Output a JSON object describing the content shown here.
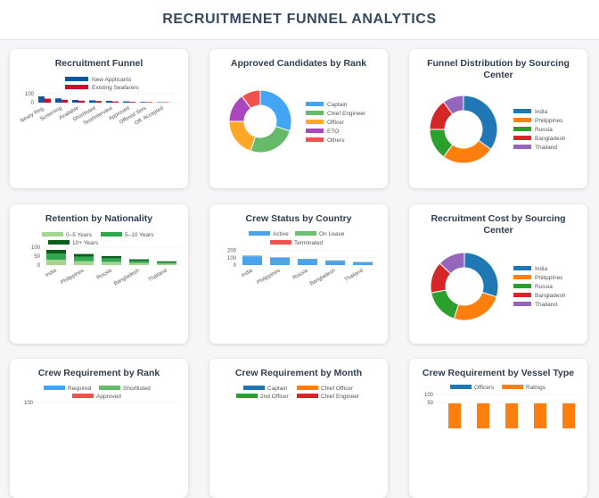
{
  "page": {
    "title": "RECRUITMENET FUNNEL ANALYTICS"
  },
  "chart_data": [
    {
      "id": "funnel",
      "type": "bar",
      "title": "Recruitment Funnel",
      "categories": [
        "Newly Reg.",
        "Screening",
        "Available",
        "Shortlisted",
        "Test/Interview",
        "Approved",
        "Offered Sers",
        "Off. Accepted"
      ],
      "series": [
        {
          "name": "New Applicants",
          "color": "#0d57a1",
          "values": [
            70,
            48,
            30,
            26,
            20,
            14,
            8,
            5
          ]
        },
        {
          "name": "Existing Seafarers",
          "color": "#c8102e",
          "values": [
            45,
            32,
            22,
            18,
            13,
            9,
            6,
            4
          ]
        }
      ],
      "yticks": [
        100,
        0
      ],
      "ylim": [
        0,
        120
      ]
    },
    {
      "id": "rank",
      "type": "pie",
      "title": "Approved Candidates by Rank",
      "labels": [
        "Captain",
        "Chief Engineer",
        "Officer",
        "ETO",
        "Others"
      ],
      "values": [
        30,
        25,
        20,
        15,
        10
      ],
      "colors": [
        "#42a5f5",
        "#66bb6a",
        "#ffa726",
        "#ab47bc",
        "#ef5350"
      ]
    },
    {
      "id": "sourcing",
      "type": "pie",
      "title": "Funnel Distribution by Sourcing Center",
      "labels": [
        "India",
        "Philippines",
        "Russia",
        "Bangladesh",
        "Thailand"
      ],
      "values": [
        35,
        25,
        15,
        15,
        10
      ],
      "colors": [
        "#1f77b4",
        "#ff7f0e",
        "#2ca02c",
        "#d62728",
        "#9467bd"
      ]
    },
    {
      "id": "retention",
      "type": "bar",
      "title": "Retention by Nationality",
      "categories": [
        "India",
        "Philippines",
        "Russia",
        "Bangladesh",
        "Thailand"
      ],
      "series": [
        {
          "name": "0–5 Years",
          "color": "#a5d68f",
          "values": [
            30,
            22,
            18,
            12,
            8
          ]
        },
        {
          "name": "5–10 Years",
          "color": "#2fa84f",
          "values": [
            35,
            25,
            20,
            12,
            8
          ]
        },
        {
          "name": "10+ Years",
          "color": "#0b5e1a",
          "values": [
            20,
            15,
            12,
            8,
            5
          ]
        }
      ],
      "yticks": [
        100,
        50,
        0
      ],
      "ylim": [
        0,
        100
      ]
    },
    {
      "id": "status",
      "type": "bar",
      "title": "Crew Status by Country",
      "categories": [
        "India",
        "Philippines",
        "Russia",
        "Bangladesh",
        "Thailand"
      ],
      "series": [
        {
          "name": "Active",
          "color": "#4aa3ec",
          "values": [
            120,
            100,
            80,
            60,
            40
          ]
        },
        {
          "name": "On Leave",
          "color": "#6cc070",
          "values": [
            8,
            6,
            5,
            4,
            3
          ]
        },
        {
          "name": "Terminated",
          "color": "#ef5350",
          "values": [
            2,
            2,
            1,
            1,
            1
          ]
        }
      ],
      "yticks": [
        200,
        100,
        0
      ],
      "ylim": [
        0,
        220
      ]
    },
    {
      "id": "cost",
      "type": "pie",
      "title": "Recruitment Cost by Sourcing Center",
      "labels": [
        "India",
        "Philippines",
        "Russia",
        "Bangladesh",
        "Thailand"
      ],
      "values": [
        30,
        25,
        17,
        15,
        13
      ],
      "colors": [
        "#1f77b4",
        "#ff7f0e",
        "#2ca02c",
        "#d62728",
        "#9467bd"
      ]
    },
    {
      "id": "req_rank",
      "type": "bar",
      "title": "Crew Requirement by Rank",
      "series": [
        {
          "name": "Required",
          "color": "#42a5f5"
        },
        {
          "name": "Shortlisted",
          "color": "#66bb6a"
        },
        {
          "name": "Approved",
          "color": "#ef5350"
        }
      ],
      "yticks": [
        100
      ]
    },
    {
      "id": "req_month",
      "type": "line",
      "title": "Crew Requirement by Month",
      "series": [
        {
          "name": "Captain",
          "color": "#1f77b4"
        },
        {
          "name": "Chief Officer",
          "color": "#ff7f0e"
        },
        {
          "name": "2nd Officer",
          "color": "#2ca02c"
        },
        {
          "name": "Chief Engineer",
          "color": "#d62728"
        }
      ]
    },
    {
      "id": "req_vessel",
      "type": "bar",
      "title": "Crew Requirement by Vessel Type",
      "series": [
        {
          "name": "Officers",
          "color": "#1f77b4",
          "values": [
            0
          ]
        },
        {
          "name": "Ratings",
          "color": "#ff7f0e",
          "values": [
            45,
            45,
            45,
            45,
            45
          ]
        }
      ],
      "yticks": [
        100,
        50
      ],
      "ylim": [
        0,
        100
      ]
    }
  ]
}
